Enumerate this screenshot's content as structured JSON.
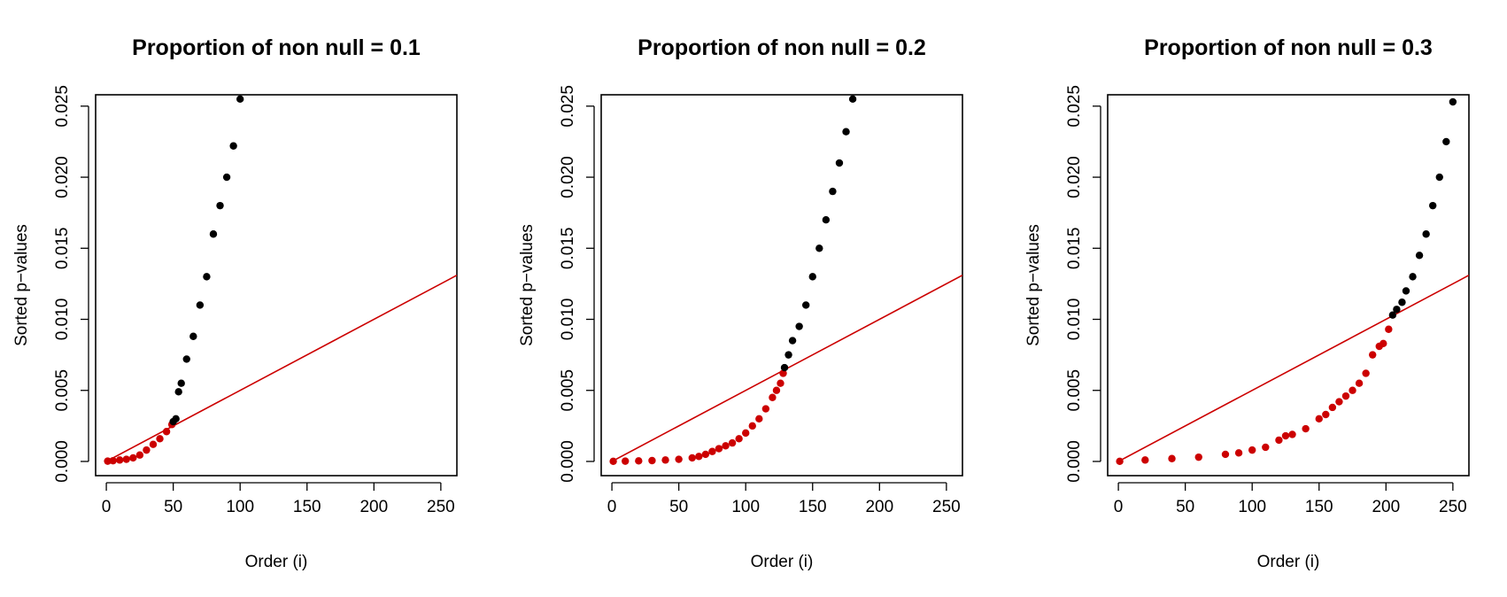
{
  "chart_data": [
    {
      "type": "scatter",
      "title": "Proportion of non null =  0.1",
      "xlabel": "Order (i)",
      "ylabel": "Sorted p−values",
      "xlim": [
        -8,
        262
      ],
      "ylim": [
        -0.001,
        0.0258
      ],
      "xticks": [
        0,
        50,
        100,
        150,
        200,
        250
      ],
      "xtick_labels": [
        "0",
        "50",
        "100",
        "150",
        "200",
        "250"
      ],
      "yticks": [
        0,
        0.005,
        0.01,
        0.015,
        0.02,
        0.025
      ],
      "ytick_labels": [
        "0.000",
        "0.005",
        "0.010",
        "0.015",
        "0.020",
        "0.025"
      ],
      "grid": false,
      "colors": {
        "rejected": "#cc0000",
        "not_rejected": "#000000",
        "line": "#cc0000"
      },
      "line": {
        "slope": 5e-05,
        "intercept": 0
      },
      "series": [
        {
          "color": "rejected",
          "x": [
            1,
            5,
            10,
            15,
            20,
            25,
            30,
            35,
            40,
            45,
            49
          ],
          "y": [
            2e-05,
            5e-05,
            0.0001,
            0.00015,
            0.00025,
            0.00045,
            0.0008,
            0.0012,
            0.0016,
            0.0021,
            0.0026
          ]
        },
        {
          "color": "not_rejected",
          "x": [
            50,
            52,
            54,
            56,
            60,
            65,
            70,
            75,
            80,
            85,
            90,
            95,
            100
          ],
          "y": [
            0.0028,
            0.003,
            0.0049,
            0.0055,
            0.0072,
            0.0088,
            0.011,
            0.013,
            0.016,
            0.018,
            0.02,
            0.0222,
            0.0255
          ]
        }
      ]
    },
    {
      "type": "scatter",
      "title": "Proportion of non null =  0.2",
      "xlabel": "Order (i)",
      "ylabel": "Sorted p−values",
      "xlim": [
        -8,
        262
      ],
      "ylim": [
        -0.001,
        0.0258
      ],
      "xticks": [
        0,
        50,
        100,
        150,
        200,
        250
      ],
      "xtick_labels": [
        "0",
        "50",
        "100",
        "150",
        "200",
        "250"
      ],
      "yticks": [
        0,
        0.005,
        0.01,
        0.015,
        0.02,
        0.025
      ],
      "ytick_labels": [
        "0.000",
        "0.005",
        "0.010",
        "0.015",
        "0.020",
        "0.025"
      ],
      "grid": false,
      "colors": {
        "rejected": "#cc0000",
        "not_rejected": "#000000",
        "line": "#cc0000"
      },
      "line": {
        "slope": 5e-05,
        "intercept": 0
      },
      "series": [
        {
          "color": "rejected",
          "x": [
            1,
            10,
            20,
            30,
            40,
            50,
            60,
            65,
            70,
            75,
            80,
            85,
            90,
            95,
            100,
            105,
            110,
            115,
            120,
            123,
            126,
            128
          ],
          "y": [
            1e-05,
            2e-05,
            4e-05,
            6e-05,
            0.0001,
            0.00015,
            0.00025,
            0.00035,
            0.0005,
            0.0007,
            0.0009,
            0.0011,
            0.0013,
            0.0016,
            0.002,
            0.0025,
            0.003,
            0.0037,
            0.0045,
            0.005,
            0.0055,
            0.0062
          ]
        },
        {
          "color": "not_rejected",
          "x": [
            129,
            132,
            135,
            140,
            145,
            150,
            155,
            160,
            165,
            170,
            175,
            180
          ],
          "y": [
            0.0066,
            0.0075,
            0.0085,
            0.0095,
            0.011,
            0.013,
            0.015,
            0.017,
            0.019,
            0.021,
            0.0232,
            0.0255
          ]
        }
      ]
    },
    {
      "type": "scatter",
      "title": "Proportion of non null =  0.3",
      "xlabel": "Order (i)",
      "ylabel": "Sorted p−values",
      "xlim": [
        -8,
        262
      ],
      "ylim": [
        -0.001,
        0.0258
      ],
      "xticks": [
        0,
        50,
        100,
        150,
        200,
        250
      ],
      "xtick_labels": [
        "0",
        "50",
        "100",
        "150",
        "200",
        "250"
      ],
      "yticks": [
        0,
        0.005,
        0.01,
        0.015,
        0.02,
        0.025
      ],
      "ytick_labels": [
        "0.000",
        "0.005",
        "0.010",
        "0.015",
        "0.020",
        "0.025"
      ],
      "grid": false,
      "colors": {
        "rejected": "#cc0000",
        "not_rejected": "#000000",
        "line": "#cc0000"
      },
      "line": {
        "slope": 5e-05,
        "intercept": 0
      },
      "series": [
        {
          "color": "rejected",
          "x": [
            1,
            20,
            40,
            60,
            80,
            90,
            100,
            110,
            120,
            125,
            130,
            140,
            150,
            155,
            160,
            165,
            170,
            175,
            180,
            185,
            190,
            195,
            198,
            202
          ],
          "y": [
            1e-05,
            0.0001,
            0.0002,
            0.0003,
            0.0005,
            0.0006,
            0.0008,
            0.001,
            0.0015,
            0.0018,
            0.0019,
            0.0023,
            0.003,
            0.0033,
            0.0038,
            0.0042,
            0.0046,
            0.005,
            0.0055,
            0.0062,
            0.0075,
            0.0081,
            0.0083,
            0.0093
          ]
        },
        {
          "color": "not_rejected",
          "x": [
            205,
            208,
            212,
            215,
            220,
            225,
            230,
            235,
            240,
            245,
            250
          ],
          "y": [
            0.0103,
            0.0107,
            0.0112,
            0.012,
            0.013,
            0.0145,
            0.016,
            0.018,
            0.02,
            0.0225,
            0.0253
          ]
        }
      ]
    }
  ]
}
